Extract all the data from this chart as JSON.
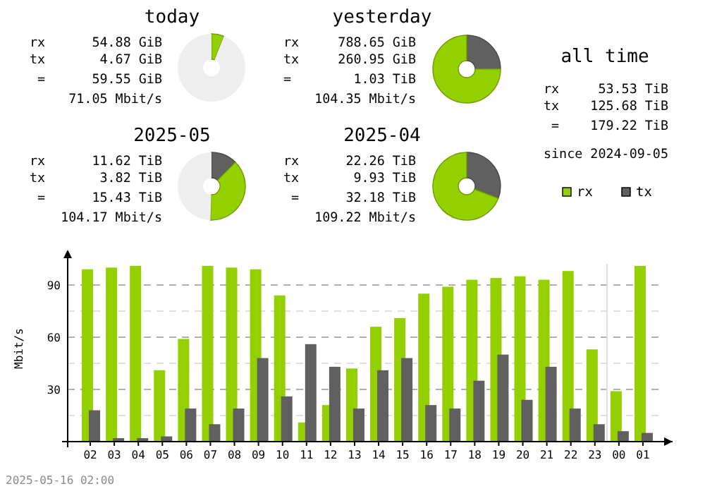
{
  "chart_data": [
    {
      "type": "donut",
      "title": "today",
      "categories": [
        null,
        null,
        null
      ],
      "values": [
        null,
        6,
        94
      ],
      "colors": [
        "#606060",
        "#94cf00",
        "#eeeeee"
      ],
      "annotations": [
        "rx      54.88 GiB",
        "tx       4.67 GiB",
        "=      59.55 GiB",
        "71.05 Mbit/s"
      ]
    },
    {
      "type": "donut",
      "title": "yesterday",
      "categories": [
        null,
        null
      ],
      "values": [
        24.9,
        75.1
      ],
      "colors": [
        "#606060",
        "#94cf00"
      ],
      "annotations": [
        "rx     788.65 GiB",
        "tx     260.95 GiB",
        "=        1.03 TiB",
        "104.35 Mbit/s"
      ]
    },
    {
      "type": "donut",
      "title": "2025-05",
      "categories": [
        null,
        null,
        null
      ],
      "values": [
        12.5,
        38,
        49.5
      ],
      "colors": [
        "#606060",
        "#94cf00",
        "#eeeeee"
      ],
      "annotations": [
        "rx      11.62 TiB",
        "tx       3.82 TiB",
        "=      15.43 TiB",
        "104.17 Mbit/s"
      ]
    },
    {
      "type": "donut",
      "title": "2025-04",
      "categories": [
        null,
        null
      ],
      "values": [
        30.8,
        69.2
      ],
      "colors": [
        "#606060",
        "#94cf00"
      ],
      "annotations": [
        "rx      22.26 TiB",
        "tx       9.93 TiB",
        "=      32.18 TiB",
        "109.22 Mbit/s"
      ]
    },
    {
      "type": "other",
      "title": "all time",
      "annotations": [
        "rx     53.53 TiB",
        "tx    125.68 TiB",
        "=    179.22 TiB",
        "since 2024-09-05"
      ]
    },
    {
      "type": "bar",
      "categories": [
        "02",
        "03",
        "04",
        "05",
        "06",
        "07",
        "08",
        "09",
        "10",
        "11",
        "12",
        "13",
        "14",
        "15",
        "16",
        "17",
        "18",
        "19",
        "20",
        "21",
        "22",
        "23",
        "00",
        "01"
      ],
      "series": [
        {
          "name": "rx",
          "color": "#94cf00",
          "values": [
            99,
            100,
            101,
            41,
            59,
            101,
            100,
            99,
            84,
            11,
            21,
            42,
            66,
            71,
            85,
            89,
            93,
            94,
            95,
            93,
            98,
            53,
            29,
            101
          ]
        },
        {
          "name": "tx",
          "color": "#606060",
          "values": [
            18,
            2,
            2,
            3,
            19,
            10,
            19,
            48,
            26,
            56,
            43,
            19,
            41,
            48,
            21,
            19,
            35,
            50,
            24,
            43,
            19,
            10,
            6,
            5
          ]
        }
      ],
      "ylabel": "Mbit/s",
      "ylim": [
        0,
        107
      ],
      "yticks": [
        {
          "value": 15,
          "label": null
        },
        30,
        {
          "value": 45,
          "label": null
        },
        60,
        {
          "value": 75,
          "label": null
        },
        90
      ],
      "grid": "y",
      "legend": "top right",
      "ref_lines": [
        {
          "axis": "x",
          "value": "00",
          "color": "#dddddd"
        }
      ],
      "annotations": [
        "2025-05-16 02:00"
      ]
    }
  ]
}
